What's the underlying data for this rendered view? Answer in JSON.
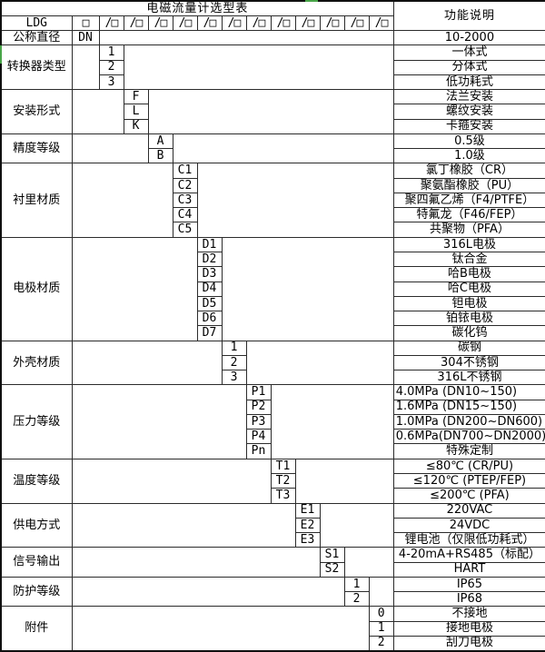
{
  "title": "电磁流量计选型表",
  "function_header": "功能说明",
  "model": {
    "prefix": "LDG",
    "first_slot": "□",
    "slot": "/□",
    "slot_count": 12
  },
  "diameter": {
    "label": "公称直径",
    "code": "DN",
    "func": "10-2000"
  },
  "sections": [
    {
      "label": "转换器类型",
      "rows": [
        {
          "code": "1",
          "func": "一体式"
        },
        {
          "code": "2",
          "func": "分体式"
        },
        {
          "code": "3",
          "func": "低功耗式"
        }
      ]
    },
    {
      "label": "安装形式",
      "rows": [
        {
          "code": "F",
          "func": "法兰安装"
        },
        {
          "code": "L",
          "func": "螺纹安装"
        },
        {
          "code": "K",
          "func": "卡箍安装"
        }
      ]
    },
    {
      "label": "精度等级",
      "rows": [
        {
          "code": "A",
          "func": "0.5级"
        },
        {
          "code": "B",
          "func": "1.0级"
        }
      ]
    },
    {
      "label": "衬里材质",
      "rows": [
        {
          "code": "C1",
          "func": "氯丁橡胶（CR）"
        },
        {
          "code": "C2",
          "func": "聚氨酯橡胶（PU）"
        },
        {
          "code": "C3",
          "func": "聚四氟乙烯（F4/PTFE）"
        },
        {
          "code": "C4",
          "func": "特氟龙（F46/FEP）"
        },
        {
          "code": "C5",
          "func": "共聚物（PFA）"
        }
      ]
    },
    {
      "label": "电极材质",
      "rows": [
        {
          "code": "D1",
          "func": "316L电极"
        },
        {
          "code": "D2",
          "func": "钛合金"
        },
        {
          "code": "D3",
          "func": "哈B电极"
        },
        {
          "code": "D4",
          "func": "哈C电极"
        },
        {
          "code": "D5",
          "func": "钽电极"
        },
        {
          "code": "D6",
          "func": "铂铱电极"
        },
        {
          "code": "D7",
          "func": "碳化钨"
        }
      ]
    },
    {
      "label": "外壳材质",
      "rows": [
        {
          "code": "1",
          "func": "碳钢"
        },
        {
          "code": "2",
          "func": "304不锈钢"
        },
        {
          "code": "3",
          "func": "316L不锈钢"
        }
      ]
    },
    {
      "label": "压力等级",
      "rows": [
        {
          "code": "P1",
          "func": "4.0MPa (DN10~150)",
          "align": "left"
        },
        {
          "code": "P2",
          "func": "1.6MPa (DN15~150)",
          "align": "left"
        },
        {
          "code": "P3",
          "func": "1.0MPa (DN200~DN600)",
          "align": "left"
        },
        {
          "code": "P4",
          "func": "0.6MPa(DN700~DN2000)",
          "align": "left"
        },
        {
          "code": "Pn",
          "func": "特殊定制"
        }
      ]
    },
    {
      "label": "温度等级",
      "rows": [
        {
          "code": "T1",
          "func": "≤80℃ (CR/PU)"
        },
        {
          "code": "T2",
          "func": "≤120℃ (PTEP/FEP)"
        },
        {
          "code": "T3",
          "func": "≤200℃ (PFA)"
        }
      ]
    },
    {
      "label": "供电方式",
      "rows": [
        {
          "code": "E1",
          "func": "220VAC"
        },
        {
          "code": "E2",
          "func": "24VDC"
        },
        {
          "code": "E3",
          "func": "锂电池（仅限低功耗式）"
        }
      ]
    },
    {
      "label": "信号输出",
      "rows": [
        {
          "code": "S1",
          "func": "4-20mA+RS485（标配）"
        },
        {
          "code": "S2",
          "func": "HART"
        }
      ]
    },
    {
      "label": "防护等级",
      "rows": [
        {
          "code": "1",
          "func": "IP65"
        },
        {
          "code": "2",
          "func": "IP68"
        }
      ]
    },
    {
      "label": "附件",
      "rows": [
        {
          "code": "0",
          "func": "不接地"
        },
        {
          "code": "1",
          "func": "接地电极"
        },
        {
          "code": "2",
          "func": "刮刀电极"
        }
      ]
    }
  ],
  "colors": {
    "background": "#ffffff",
    "grid": "#2b2b2b",
    "outer_border": "#101010",
    "text": "#000000",
    "scan_artifact_green": "#48a548"
  }
}
